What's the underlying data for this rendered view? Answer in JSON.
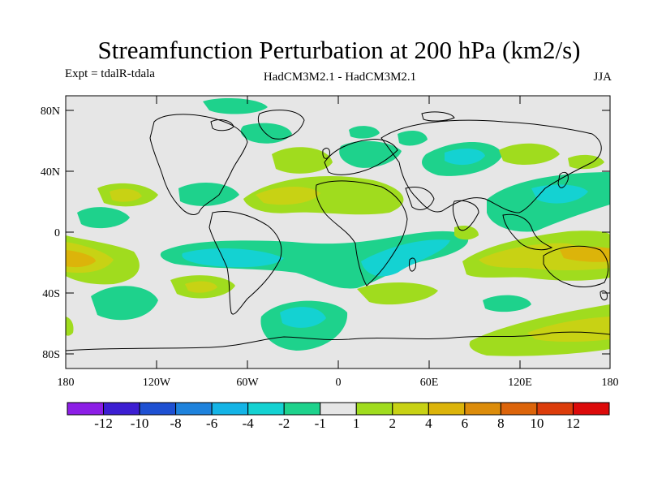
{
  "title": "Streamfunction Perturbation at 200 hPa (km2/s)",
  "experiment": "Expt = tdalR-tdala",
  "model": "HadCM3M2.1 - HadCM3M2.1",
  "season": "JJA",
  "y_ticks": [
    "80N",
    "40N",
    "0",
    "40S",
    "80S"
  ],
  "x_ticks": [
    "180",
    "120W",
    "60W",
    "0",
    "60E",
    "120E",
    "180"
  ],
  "colorbar": {
    "labels": [
      "-12",
      "-10",
      "-8",
      "-6",
      "-4",
      "-2",
      "-1",
      "1",
      "2",
      "4",
      "6",
      "8",
      "10",
      "12"
    ],
    "colors": [
      "#8c1ee6",
      "#3c1ed2",
      "#1e50d2",
      "#1e82dc",
      "#14b4e6",
      "#14d2d2",
      "#1ed28c",
      "#e6e6e6",
      "#a0dc1e",
      "#c8d214",
      "#dcb40a",
      "#dc8c0a",
      "#dc640a",
      "#dc3c0a",
      "#dc0a0a"
    ]
  },
  "colors": {
    "background": "#e6e6e6",
    "neg1": "#1ed28c",
    "neg2": "#14d2d2",
    "pos1": "#a0dc1e",
    "pos2": "#c8d214",
    "pos3": "#dcb40a"
  }
}
